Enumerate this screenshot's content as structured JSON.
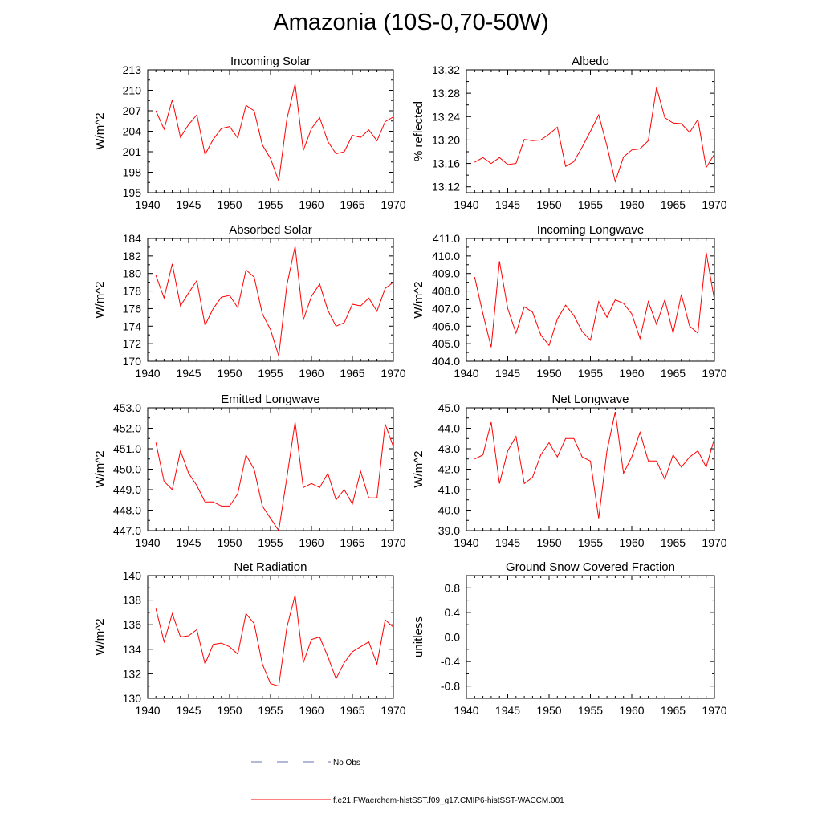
{
  "title": "Amazonia (10S-0,70-50W)",
  "colors": {
    "series": "#ff0000",
    "obs": "#6a72b0",
    "axis": "#000000"
  },
  "legend": {
    "obs_label": "No Obs",
    "model_label": "f.e21.FWaerchem-histSST.f09_g17.CMIP6-histSST-WACCM.001"
  },
  "chart_data": [
    {
      "type": "line",
      "title": "Incoming Solar",
      "ylabel": "W/m^2",
      "xlim": [
        1940,
        1970
      ],
      "ylim": [
        195,
        213
      ],
      "yticks": [
        "195",
        "198",
        "201",
        "204",
        "207",
        "210",
        "213"
      ],
      "yticks_values": [
        195,
        198,
        201,
        204,
        207,
        210,
        213
      ],
      "xticks": [
        "1940",
        "1945",
        "1950",
        "1955",
        "1960",
        "1965",
        "1970"
      ],
      "series": [
        {
          "x": [
            1941,
            1942,
            1943,
            1944,
            1945,
            1946,
            1947,
            1948,
            1949,
            1950,
            1951,
            1952,
            1953,
            1954,
            1955,
            1956,
            1957,
            1958,
            1959,
            1960,
            1961,
            1962,
            1963,
            1964,
            1965,
            1966,
            1967,
            1968,
            1969,
            1970
          ],
          "values": [
            207.0,
            204.3,
            208.6,
            203.1,
            205.0,
            206.4,
            200.6,
            202.8,
            204.4,
            204.7,
            203.0,
            207.8,
            207.0,
            202.0,
            200.0,
            196.7,
            205.8,
            210.9,
            201.2,
            204.4,
            206.0,
            202.5,
            200.7,
            201.0,
            203.4,
            203.1,
            204.2,
            202.6,
            205.4,
            206.1
          ]
        }
      ]
    },
    {
      "type": "line",
      "title": "Albedo",
      "ylabel": "% reflected",
      "xlim": [
        1940,
        1970
      ],
      "ylim": [
        13.11,
        13.32
      ],
      "yticks": [
        "13.12",
        "13.16",
        "13.20",
        "13.24",
        "13.28",
        "13.32"
      ],
      "yticks_values": [
        13.12,
        13.16,
        13.2,
        13.24,
        13.28,
        13.32
      ],
      "xticks": [
        "1940",
        "1945",
        "1950",
        "1955",
        "1960",
        "1965",
        "1970"
      ],
      "series": [
        {
          "x": [
            1941,
            1942,
            1943,
            1944,
            1945,
            1946,
            1947,
            1948,
            1949,
            1950,
            1951,
            1952,
            1953,
            1954,
            1955,
            1956,
            1957,
            1958,
            1959,
            1960,
            1961,
            1962,
            1963,
            1964,
            1965,
            1966,
            1967,
            1968,
            1969,
            1970
          ],
          "values": [
            13.162,
            13.17,
            13.16,
            13.17,
            13.158,
            13.16,
            13.201,
            13.199,
            13.2,
            13.21,
            13.222,
            13.155,
            13.163,
            13.188,
            13.215,
            13.243,
            13.19,
            13.129,
            13.171,
            13.183,
            13.185,
            13.199,
            13.29,
            13.238,
            13.229,
            13.228,
            13.213,
            13.235,
            13.153,
            13.176
          ]
        }
      ]
    },
    {
      "type": "line",
      "title": "Absorbed Solar",
      "ylabel": "W/m^2",
      "xlim": [
        1940,
        1970
      ],
      "ylim": [
        170,
        184
      ],
      "yticks": [
        "170",
        "172",
        "174",
        "176",
        "178",
        "180",
        "182",
        "184"
      ],
      "yticks_values": [
        170,
        172,
        174,
        176,
        178,
        180,
        182,
        184
      ],
      "xticks": [
        "1940",
        "1945",
        "1950",
        "1955",
        "1960",
        "1965",
        "1970"
      ],
      "series": [
        {
          "x": [
            1941,
            1942,
            1943,
            1944,
            1945,
            1946,
            1947,
            1948,
            1949,
            1950,
            1951,
            1952,
            1953,
            1954,
            1955,
            1956,
            1957,
            1958,
            1959,
            1960,
            1961,
            1962,
            1963,
            1964,
            1965,
            1966,
            1967,
            1968,
            1969,
            1970
          ],
          "values": [
            179.8,
            177.2,
            181.1,
            176.3,
            177.8,
            179.2,
            174.1,
            176.0,
            177.3,
            177.5,
            176.1,
            180.4,
            179.6,
            175.4,
            173.6,
            170.6,
            178.7,
            183.1,
            174.7,
            177.4,
            178.8,
            175.8,
            174.0,
            174.4,
            176.5,
            176.3,
            177.2,
            175.7,
            178.3,
            179.0
          ]
        }
      ]
    },
    {
      "type": "line",
      "title": "Incoming Longwave",
      "ylabel": "W/m^2",
      "xlim": [
        1940,
        1970
      ],
      "ylim": [
        404.0,
        411.0
      ],
      "yticks": [
        "404.0",
        "405.0",
        "406.0",
        "407.0",
        "408.0",
        "409.0",
        "410.0",
        "411.0"
      ],
      "yticks_values": [
        404,
        405,
        406,
        407,
        408,
        409,
        410,
        411
      ],
      "xticks": [
        "1940",
        "1945",
        "1950",
        "1955",
        "1960",
        "1965",
        "1970"
      ],
      "series": [
        {
          "x": [
            1941,
            1942,
            1943,
            1944,
            1945,
            1946,
            1947,
            1948,
            1949,
            1950,
            1951,
            1952,
            1953,
            1954,
            1955,
            1956,
            1957,
            1958,
            1959,
            1960,
            1961,
            1962,
            1963,
            1964,
            1965,
            1966,
            1967,
            1968,
            1969,
            1970
          ],
          "values": [
            408.8,
            406.7,
            404.8,
            409.7,
            407.0,
            405.6,
            407.1,
            406.8,
            405.5,
            404.9,
            406.4,
            407.2,
            406.6,
            405.7,
            405.2,
            407.4,
            406.5,
            407.5,
            407.3,
            406.7,
            405.3,
            407.4,
            406.1,
            407.5,
            405.6,
            407.8,
            406.0,
            405.6,
            410.2,
            407.5
          ]
        }
      ]
    },
    {
      "type": "line",
      "title": "Emitted Longwave",
      "ylabel": "W/m^2",
      "xlim": [
        1940,
        1970
      ],
      "ylim": [
        447.0,
        453.0
      ],
      "yticks": [
        "447.0",
        "448.0",
        "449.0",
        "450.0",
        "451.0",
        "452.0",
        "453.0"
      ],
      "yticks_values": [
        447,
        448,
        449,
        450,
        451,
        452,
        453
      ],
      "xticks": [
        "1940",
        "1945",
        "1950",
        "1955",
        "1960",
        "1965",
        "1970"
      ],
      "series": [
        {
          "x": [
            1941,
            1942,
            1943,
            1944,
            1945,
            1946,
            1947,
            1948,
            1949,
            1950,
            1951,
            1952,
            1953,
            1954,
            1955,
            1956,
            1957,
            1958,
            1959,
            1960,
            1961,
            1962,
            1963,
            1964,
            1965,
            1966,
            1967,
            1968,
            1969,
            1970
          ],
          "values": [
            451.3,
            449.4,
            449.0,
            450.9,
            449.8,
            449.2,
            448.4,
            448.4,
            448.2,
            448.2,
            448.8,
            450.7,
            450.0,
            448.2,
            447.6,
            447.0,
            449.6,
            452.3,
            449.1,
            449.3,
            449.1,
            449.8,
            448.5,
            449.0,
            448.3,
            449.9,
            448.6,
            448.6,
            452.2,
            451.1
          ]
        }
      ]
    },
    {
      "type": "line",
      "title": "Net Longwave",
      "ylabel": "W/m^2",
      "xlim": [
        1940,
        1970
      ],
      "ylim": [
        39.0,
        45.0
      ],
      "yticks": [
        "39.0",
        "40.0",
        "41.0",
        "42.0",
        "43.0",
        "44.0",
        "45.0"
      ],
      "yticks_values": [
        39,
        40,
        41,
        42,
        43,
        44,
        45
      ],
      "xticks": [
        "1940",
        "1945",
        "1950",
        "1955",
        "1960",
        "1965",
        "1970"
      ],
      "series": [
        {
          "x": [
            1941,
            1942,
            1943,
            1944,
            1945,
            1946,
            1947,
            1948,
            1949,
            1950,
            1951,
            1952,
            1953,
            1954,
            1955,
            1956,
            1957,
            1958,
            1959,
            1960,
            1961,
            1962,
            1963,
            1964,
            1965,
            1966,
            1967,
            1968,
            1969,
            1970
          ],
          "values": [
            42.5,
            42.7,
            44.3,
            41.3,
            42.9,
            43.6,
            41.3,
            41.6,
            42.7,
            43.3,
            42.6,
            43.5,
            43.5,
            42.6,
            42.4,
            39.6,
            42.9,
            44.8,
            41.8,
            42.6,
            43.8,
            42.4,
            42.4,
            41.5,
            42.7,
            42.1,
            42.6,
            42.9,
            42.1,
            43.5
          ]
        }
      ]
    },
    {
      "type": "line",
      "title": "Net Radiation",
      "ylabel": "W/m^2",
      "xlim": [
        1940,
        1970
      ],
      "ylim": [
        130,
        140
      ],
      "yticks": [
        "130",
        "132",
        "134",
        "136",
        "138",
        "140"
      ],
      "yticks_values": [
        130,
        132,
        134,
        136,
        138,
        140
      ],
      "xticks": [
        "1940",
        "1945",
        "1950",
        "1955",
        "1960",
        "1965",
        "1970"
      ],
      "series": [
        {
          "x": [
            1941,
            1942,
            1943,
            1944,
            1945,
            1946,
            1947,
            1948,
            1949,
            1950,
            1951,
            1952,
            1953,
            1954,
            1955,
            1956,
            1957,
            1958,
            1959,
            1960,
            1961,
            1962,
            1963,
            1964,
            1965,
            1966,
            1967,
            1968,
            1969,
            1970
          ],
          "values": [
            137.3,
            134.6,
            136.9,
            135.0,
            135.1,
            135.6,
            132.8,
            134.4,
            134.5,
            134.2,
            133.6,
            136.9,
            136.1,
            132.8,
            131.2,
            131.0,
            135.8,
            138.4,
            132.9,
            134.8,
            135.0,
            133.4,
            131.6,
            132.9,
            133.8,
            134.2,
            134.6,
            132.8,
            136.4,
            135.8
          ]
        }
      ]
    },
    {
      "type": "line",
      "title": "Ground Snow Covered Fraction",
      "ylabel": "unitless",
      "xlim": [
        1940,
        1970
      ],
      "ylim": [
        -1.0,
        1.0
      ],
      "yticks": [
        "-0.8",
        "-0.4",
        "0.0",
        "0.4",
        "0.8"
      ],
      "yticks_values": [
        -0.8,
        -0.4,
        0.0,
        0.4,
        0.8
      ],
      "xticks": [
        "1940",
        "1945",
        "1950",
        "1955",
        "1960",
        "1965",
        "1970"
      ],
      "series": [
        {
          "x": [
            1941,
            1970
          ],
          "values": [
            0.0,
            0.0
          ]
        }
      ]
    }
  ]
}
